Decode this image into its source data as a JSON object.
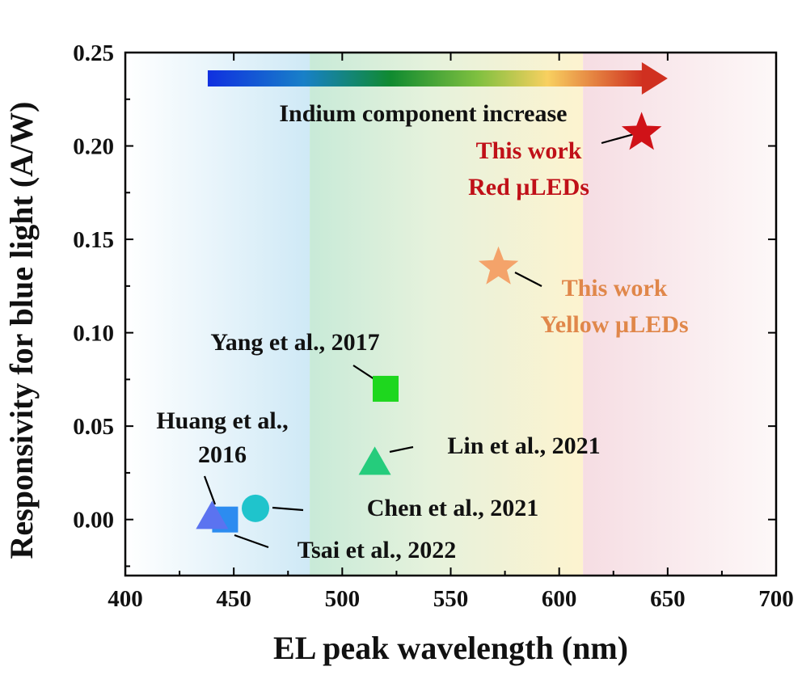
{
  "chart_data": {
    "type": "scatter",
    "title": "",
    "xlabel": "EL peak wavelength (nm)",
    "ylabel": "Responsivity for blue light (A/W)",
    "xlim": [
      400,
      700
    ],
    "ylim": [
      -0.03,
      0.25
    ],
    "xticks": [
      400,
      450,
      500,
      550,
      600,
      650,
      700
    ],
    "yticks": [
      0.0,
      0.05,
      0.1,
      0.15,
      0.2,
      0.25
    ],
    "xtick_labels": [
      "400",
      "450",
      "500",
      "550",
      "600",
      "650",
      "700"
    ],
    "ytick_labels": [
      "0.00",
      "0.05",
      "0.10",
      "0.15",
      "0.20",
      "0.25"
    ],
    "regions": [
      {
        "name": "blue",
        "from": 400,
        "to": 485,
        "color": "#cfe9f5"
      },
      {
        "name": "green",
        "from": 485,
        "to": 611,
        "color": "#cdebd6"
      },
      {
        "name": "yellow",
        "from": 540,
        "to": 611,
        "color": "#fdf2cf"
      },
      {
        "name": "red",
        "from": 611,
        "to": 700,
        "color": "#f9e6ea"
      }
    ],
    "arrow": {
      "text": "Indium component increase",
      "from": 438,
      "to": 650
    },
    "points": [
      {
        "id": "huang",
        "label_lines": [
          "Huang et al.,",
          "2016"
        ],
        "x": 440,
        "y": 0.001,
        "marker": "triangle",
        "color": "#5b73f0"
      },
      {
        "id": "tsai",
        "label_lines": [
          "Tsai et al., 2022"
        ],
        "x": 446,
        "y": 0.0,
        "marker": "square",
        "color": "#2c8cf0"
      },
      {
        "id": "chen",
        "label_lines": [
          "Chen et al., 2021"
        ],
        "x": 460,
        "y": 0.006,
        "marker": "circle",
        "color": "#1fc4cc"
      },
      {
        "id": "yang",
        "label_lines": [
          "Yang et al., 2017"
        ],
        "x": 520,
        "y": 0.07,
        "marker": "square",
        "color": "#1ed71e"
      },
      {
        "id": "lin",
        "label_lines": [
          "Lin et al., 2021"
        ],
        "x": 515,
        "y": 0.03,
        "marker": "triangle",
        "color": "#25cc7c"
      },
      {
        "id": "yellow",
        "label_lines": [
          "This work",
          "Yellow µLEDs"
        ],
        "x": 572,
        "y": 0.135,
        "marker": "star",
        "color": "#f4a36a",
        "label_color": "#e0874a"
      },
      {
        "id": "red",
        "label_lines": [
          "This work",
          "Red µLEDs"
        ],
        "x": 638,
        "y": 0.207,
        "marker": "star",
        "color": "#d01218",
        "label_color": "#c01018"
      }
    ],
    "colors": {
      "axis": "#000000",
      "text": "#111111"
    }
  }
}
